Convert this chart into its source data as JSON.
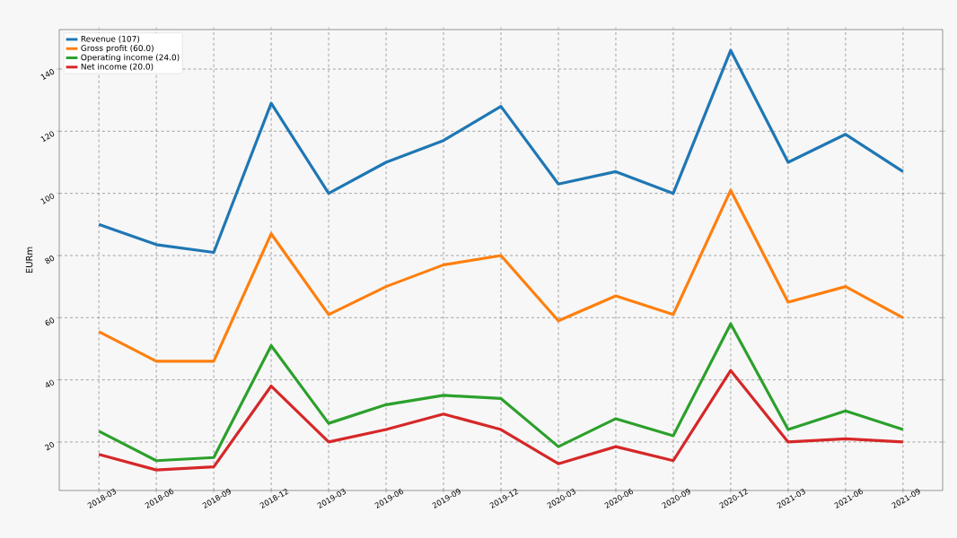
{
  "chart_data": {
    "type": "line",
    "ylabel": "EURm",
    "categories": [
      "2018-03",
      "2018-06",
      "2018-09",
      "2018-12",
      "2019-03",
      "2019-06",
      "2019-09",
      "2019-12",
      "2020-03",
      "2020-06",
      "2020-09",
      "2020-12",
      "2021-03",
      "2021-06",
      "2021-09"
    ],
    "series": [
      {
        "name": "Revenue (107)",
        "color": "#1f77b4",
        "values": [
          90,
          83.5,
          81,
          129,
          100,
          110,
          117,
          128,
          103,
          107,
          100,
          146,
          110,
          119,
          107
        ]
      },
      {
        "name": "Gross profit (60.0)",
        "color": "#ff7f0e",
        "values": [
          55.5,
          46,
          46,
          87,
          61,
          70,
          77,
          80,
          59,
          67,
          61,
          101,
          65,
          70,
          60
        ]
      },
      {
        "name": "Operating income (24.0)",
        "color": "#2ca02c",
        "values": [
          23.5,
          14,
          15,
          51,
          26,
          32,
          35,
          34,
          18.5,
          27.5,
          22,
          58,
          24,
          30,
          24
        ]
      },
      {
        "name": "Net income (20.0)",
        "color": "#d62728",
        "values": [
          16,
          11,
          12,
          38,
          20,
          24,
          29,
          24,
          13,
          18.5,
          14,
          43,
          20,
          21,
          20
        ]
      }
    ],
    "ylim": [
      4.4,
      152.7
    ],
    "yticks": [
      20,
      40,
      60,
      80,
      100,
      120,
      140
    ],
    "grid": true,
    "legend": "top left",
    "marker": "none",
    "line_style": "solid"
  }
}
